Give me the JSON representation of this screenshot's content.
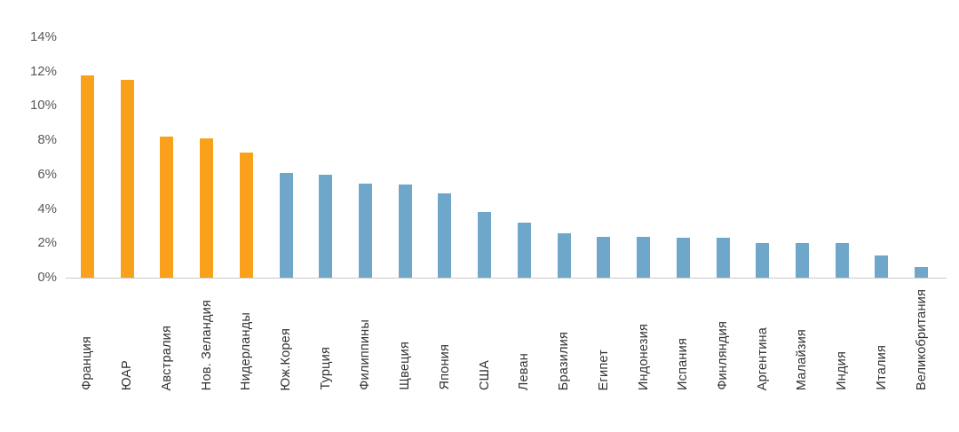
{
  "chart_data": {
    "type": "bar",
    "title": "",
    "xlabel": "",
    "ylabel": "",
    "categories": [
      "Франция",
      "ЮАР",
      "Австралия",
      "Нов. Зеландия",
      "Нидерланды",
      "Юж.Корея",
      "Турция",
      "Филиппины",
      "Щвеция",
      "Япония",
      "США",
      "Леван",
      "Бразилия",
      "Египет",
      "Индонезия",
      "Испания",
      "Финляндия",
      "Аргентина",
      "Малайзия",
      "Индия",
      "Италия",
      "Великобритания"
    ],
    "values": [
      11.8,
      11.5,
      8.2,
      8.1,
      7.3,
      6.1,
      6.0,
      5.5,
      5.4,
      4.9,
      3.8,
      3.2,
      2.6,
      2.4,
      2.4,
      2.3,
      2.3,
      2.0,
      2.0,
      2.0,
      1.3,
      0.6
    ],
    "highlight_count": 5,
    "colors": {
      "highlight_bar": "#F9A11B",
      "default_bar": "#6FA7CB",
      "y_tick_text": "#595959",
      "x_tick_text": "#333333",
      "axis_line": "#C9C9C9",
      "background": "#FFFFFF"
    },
    "yticks": [
      "0%",
      "2%",
      "4%",
      "6%",
      "8%",
      "10%",
      "12%",
      "14%"
    ],
    "ylim": [
      0,
      14
    ],
    "grid": false,
    "legend_position": "none",
    "x_labels_rotation_deg": 90
  }
}
